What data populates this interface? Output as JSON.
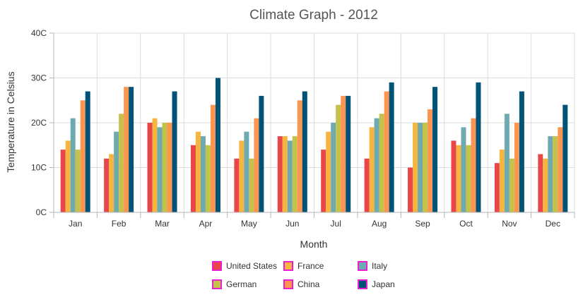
{
  "chart_data": {
    "type": "bar",
    "title": "Climate Graph - 2012",
    "xlabel": "Month",
    "ylabel": "Temperature in Celsius",
    "ylim": [
      0,
      40
    ],
    "y_ticks": [
      "0C",
      "10C",
      "20C",
      "30C",
      "40C"
    ],
    "y_tick_values": [
      0,
      10,
      20,
      30,
      40
    ],
    "grid": true,
    "legend_position": "bottom",
    "categories": [
      "Jan",
      "Feb",
      "Mar",
      "Apr",
      "May",
      "Jun",
      "Jul",
      "Aug",
      "Sep",
      "Oct",
      "Nov",
      "Dec"
    ],
    "series": [
      {
        "name": "United States",
        "color": "#e94649",
        "values": [
          14,
          12,
          20,
          15,
          12,
          17,
          14,
          12,
          10,
          16,
          11,
          13
        ]
      },
      {
        "name": "France",
        "color": "#f6b53f",
        "values": [
          16,
          13,
          21,
          18,
          16,
          17,
          18,
          19,
          20,
          15,
          14,
          12
        ]
      },
      {
        "name": "Italy",
        "color": "#6faab0",
        "values": [
          21,
          18,
          19,
          17,
          18,
          16,
          20,
          21,
          20,
          19,
          22,
          17
        ]
      },
      {
        "name": "German",
        "color": "#c4c24a",
        "values": [
          14,
          22,
          20,
          15,
          12,
          17,
          24,
          22,
          20,
          15,
          12,
          17
        ]
      },
      {
        "name": "China",
        "color": "#fb954f",
        "values": [
          25,
          28,
          20,
          24,
          21,
          25,
          26,
          27,
          23,
          21,
          20,
          19
        ]
      },
      {
        "name": "Japan",
        "color": "#005277",
        "values": [
          27,
          28,
          27,
          30,
          26,
          27,
          26,
          29,
          28,
          29,
          27,
          24
        ]
      }
    ]
  }
}
